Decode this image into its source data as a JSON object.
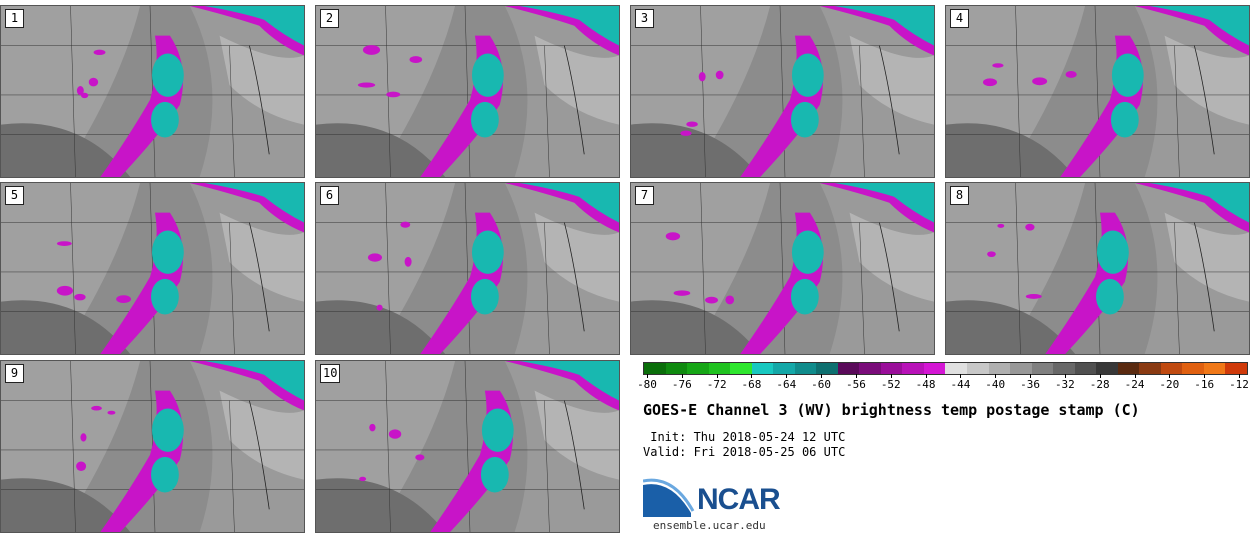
{
  "panels": [
    {
      "label": "1"
    },
    {
      "label": "2"
    },
    {
      "label": "3"
    },
    {
      "label": "4"
    },
    {
      "label": "5"
    },
    {
      "label": "6"
    },
    {
      "label": "7"
    },
    {
      "label": "8"
    },
    {
      "label": "9"
    },
    {
      "label": "10"
    }
  ],
  "colorbar": {
    "ticks": [
      "-80",
      "-76",
      "-72",
      "-68",
      "-64",
      "-60",
      "-56",
      "-52",
      "-48",
      "-44",
      "-40",
      "-36",
      "-32",
      "-28",
      "-24",
      "-20",
      "-16",
      "-12"
    ],
    "colors": [
      "#0a6e0a",
      "#0f8a0f",
      "#16a616",
      "#1fc21f",
      "#2ee62e",
      "#18c8c0",
      "#14a8a8",
      "#108c8c",
      "#0e7070",
      "#5a0a5a",
      "#7a0c7a",
      "#9a0e9a",
      "#b812b8",
      "#d416d4",
      "#e0e0e0",
      "#c8c8c8",
      "#b0b0b0",
      "#989898",
      "#808080",
      "#686868",
      "#505050",
      "#383838",
      "#5a2a10",
      "#8a3a12",
      "#c04a10",
      "#e06010",
      "#f07818",
      "#d03a0a"
    ]
  },
  "title": "GOES-E Channel 3 (WV) brightness temp postage stamp (C)",
  "init_line": " Init: Thu 2018-05-24 12 UTC",
  "valid_line": "Valid: Fri 2018-05-25 06 UTC",
  "logo_text": "NCAR",
  "logo_url": "ensemble.ucar.edu"
}
